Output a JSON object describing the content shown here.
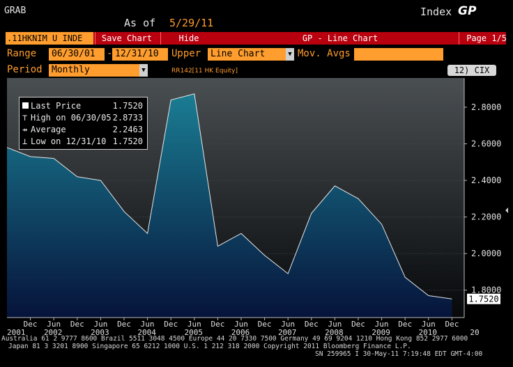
{
  "header": {
    "function_code": "GRAB",
    "asof_label": "As of",
    "asof_date": "5/29/11",
    "index_label": "Index",
    "index_code": "GP"
  },
  "toolbar": {
    "ticker": ".11HKNIM U INDE",
    "save_chart_label": "Save Chart",
    "hide_label": "Hide",
    "title": "GP - Line Chart",
    "page_indicator": "Page 1/5"
  },
  "controls": {
    "range_label": "Range",
    "start_date": "06/30/01",
    "range_separator": "-",
    "end_date": "12/31/10",
    "upper_label": "Upper",
    "upper_type": "Line Chart",
    "mov_avgs_label": "Mov. Avgs",
    "period_label": "Period",
    "period_value": "Monthly",
    "series_note": "RR142[11 HK Equity]",
    "cix_button": "12) CIX"
  },
  "legend": {
    "rows": [
      {
        "label": "Last Price",
        "value": "1.7520",
        "marker": "square"
      },
      {
        "label": "High on 06/30/05",
        "value": "2.8733",
        "marker": "high"
      },
      {
        "label": "Average",
        "value": "2.2463",
        "marker": "avg"
      },
      {
        "label": "Low on 12/31/10",
        "value": "1.7520",
        "marker": "low"
      }
    ]
  },
  "last_price_tag": "1.7520",
  "chart_data": {
    "type": "area",
    "x": [
      "2001-06",
      "2001-12",
      "2002-06",
      "2002-12",
      "2003-06",
      "2003-12",
      "2004-06",
      "2004-12",
      "2005-06",
      "2005-12",
      "2006-06",
      "2006-12",
      "2007-06",
      "2007-12",
      "2008-06",
      "2008-12",
      "2009-06",
      "2009-12",
      "2010-06",
      "2010-12"
    ],
    "values": [
      2.58,
      2.53,
      2.52,
      2.42,
      2.4,
      2.23,
      2.11,
      2.84,
      2.8733,
      2.04,
      2.11,
      1.99,
      1.89,
      2.22,
      2.37,
      2.3,
      2.16,
      1.87,
      1.77,
      1.752
    ],
    "ylim": [
      1.65,
      2.96
    ],
    "yticks": [
      "2.8000",
      "2.6000",
      "2.4000",
      "2.2000",
      "2.0000",
      "1.8000"
    ],
    "ytick_values": [
      2.8,
      2.6,
      2.4,
      2.2,
      2.0,
      1.8
    ],
    "xtick_months": [
      "Dec",
      "Jun",
      "Dec",
      "Jun",
      "Dec",
      "Jun",
      "Dec",
      "Jun",
      "Dec",
      "Jun",
      "Dec",
      "Jun",
      "Dec",
      "Jun",
      "Dec",
      "Jun",
      "Dec",
      "Jun",
      "Dec"
    ],
    "xtick_years": [
      "2001",
      "2002",
      "2003",
      "2004",
      "2005",
      "2006",
      "2007",
      "2008",
      "2009",
      "2010",
      "20"
    ],
    "grid": true,
    "legend_position": "top-left",
    "colors": {
      "fill_top": "#1a7d93",
      "fill_bottom": "#06133a",
      "line": "#e8e8e8",
      "grid": "#3a4a4f",
      "background_top": "#4a4f52",
      "background_bottom": "#06080a"
    }
  },
  "footer": {
    "line1": "Australia 61 2 9777 8600 Brazil 5511 3048 4500 Europe 44 20 7330 7500 Germany 49 69 9204 1210 Hong Kong 852 2977 6000",
    "line2": "Japan 81 3 3201 8900        Singapore 65 6212 1000        U.S. 1 212 318 2000        Copyright 2011 Bloomberg Finance L.P.",
    "line3": "SN 259965 I 30-May-11  7:19:48 EDT  GMT-4:00"
  }
}
